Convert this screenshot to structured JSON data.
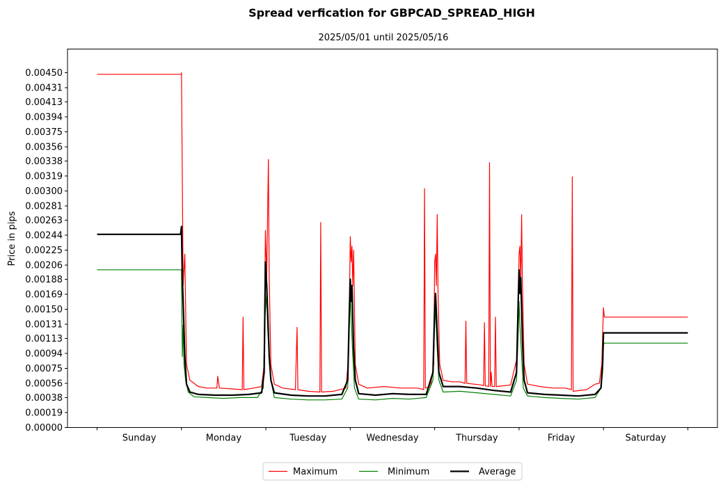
{
  "chart_data": {
    "type": "line",
    "title": "Spread verfication for GBPCAD_SPREAD_HIGH",
    "subtitle": "2025/05/01 until 2025/05/16",
    "xlabel": "",
    "ylabel": "Price in pips",
    "ylim": [
      0,
      0.0048
    ],
    "y_ticks": [
      "0.00000",
      "0.00019",
      "0.00038",
      "0.00056",
      "0.00075",
      "0.00094",
      "0.00113",
      "0.00131",
      "0.00150",
      "0.00169",
      "0.00188",
      "0.00206",
      "0.00225",
      "0.00244",
      "0.00263",
      "0.00281",
      "0.00300",
      "0.00319",
      "0.00338",
      "0.00356",
      "0.00375",
      "0.00394",
      "0.00413",
      "0.00431",
      "0.00450"
    ],
    "categories": [
      "Sunday",
      "Monday",
      "Tuesday",
      "Wednesday",
      "Thursday",
      "Friday",
      "Saturday"
    ],
    "xlim": [
      -0.35,
      7.35
    ],
    "legend_position": "bottom-center",
    "grid": false,
    "series": [
      {
        "name": "Maximum",
        "color": "#ff0000",
        "width": 1.2,
        "points": [
          [
            0,
            0.00448
          ],
          [
            0.999,
            0.00448
          ],
          [
            1.0,
            0.0045
          ],
          [
            1.02,
            0.0018
          ],
          [
            1.04,
            0.0022
          ],
          [
            1.06,
            0.0008
          ],
          [
            1.1,
            0.0006
          ],
          [
            1.2,
            0.00052
          ],
          [
            1.3,
            0.0005
          ],
          [
            1.42,
            0.0005
          ],
          [
            1.43,
            0.00065
          ],
          [
            1.45,
            0.0005
          ],
          [
            1.6,
            0.00049
          ],
          [
            1.72,
            0.00048
          ],
          [
            1.73,
            0.0014
          ],
          [
            1.74,
            0.00048
          ],
          [
            1.85,
            0.0005
          ],
          [
            1.95,
            0.00052
          ],
          [
            1.98,
            0.0008
          ],
          [
            1.995,
            0.0025
          ],
          [
            2.01,
            0.0019
          ],
          [
            2.03,
            0.0034
          ],
          [
            2.04,
            0.0019
          ],
          [
            2.06,
            0.0008
          ],
          [
            2.1,
            0.00055
          ],
          [
            2.2,
            0.0005
          ],
          [
            2.35,
            0.00048
          ],
          [
            2.37,
            0.00127
          ],
          [
            2.38,
            0.00048
          ],
          [
            2.5,
            0.00046
          ],
          [
            2.64,
            0.00045
          ],
          [
            2.65,
            0.0026
          ],
          [
            2.66,
            0.00045
          ],
          [
            2.8,
            0.00046
          ],
          [
            2.95,
            0.0005
          ],
          [
            2.98,
            0.0009
          ],
          [
            3.0,
            0.00242
          ],
          [
            3.01,
            0.0021
          ],
          [
            3.02,
            0.0023
          ],
          [
            3.03,
            0.0018
          ],
          [
            3.04,
            0.00225
          ],
          [
            3.06,
            0.0008
          ],
          [
            3.1,
            0.00055
          ],
          [
            3.2,
            0.0005
          ],
          [
            3.4,
            0.00052
          ],
          [
            3.6,
            0.0005
          ],
          [
            3.8,
            0.0005
          ],
          [
            3.87,
            0.00048
          ],
          [
            3.88,
            0.00303
          ],
          [
            3.89,
            0.0005
          ],
          [
            3.95,
            0.00052
          ],
          [
            3.99,
            0.0008
          ],
          [
            4.0,
            0.0021
          ],
          [
            4.01,
            0.0022
          ],
          [
            4.02,
            0.0018
          ],
          [
            4.03,
            0.0027
          ],
          [
            4.04,
            0.0017
          ],
          [
            4.06,
            0.0008
          ],
          [
            4.1,
            0.0006
          ],
          [
            4.2,
            0.00058
          ],
          [
            4.3,
            0.00058
          ],
          [
            4.36,
            0.00056
          ],
          [
            4.37,
            0.00135
          ],
          [
            4.38,
            0.00056
          ],
          [
            4.55,
            0.00054
          ],
          [
            4.58,
            0.00053
          ],
          [
            4.59,
            0.00133
          ],
          [
            4.6,
            0.00053
          ],
          [
            4.64,
            0.00052
          ],
          [
            4.65,
            0.00336
          ],
          [
            4.66,
            0.00052
          ],
          [
            4.67,
            0.0007
          ],
          [
            4.68,
            0.00052
          ],
          [
            4.71,
            0.00052
          ],
          [
            4.72,
            0.0014
          ],
          [
            4.73,
            0.00052
          ],
          [
            4.9,
            0.00054
          ],
          [
            4.98,
            0.0009
          ],
          [
            5.0,
            0.0022
          ],
          [
            5.01,
            0.0023
          ],
          [
            5.02,
            0.0018
          ],
          [
            5.03,
            0.0027
          ],
          [
            5.04,
            0.0018
          ],
          [
            5.06,
            0.0008
          ],
          [
            5.1,
            0.00055
          ],
          [
            5.25,
            0.00052
          ],
          [
            5.4,
            0.0005
          ],
          [
            5.55,
            0.0005
          ],
          [
            5.62,
            0.00048
          ],
          [
            5.63,
            0.00318
          ],
          [
            5.64,
            0.00046
          ],
          [
            5.8,
            0.00048
          ],
          [
            5.9,
            0.00055
          ],
          [
            5.95,
            0.00056
          ],
          [
            5.98,
            0.0008
          ],
          [
            6.0,
            0.00152
          ],
          [
            6.01,
            0.0014
          ],
          [
            7.0,
            0.0014
          ]
        ]
      },
      {
        "name": "Minimum",
        "color": "#008000",
        "width": 1.2,
        "points": [
          [
            0,
            0.002
          ],
          [
            1.0,
            0.002
          ],
          [
            1.01,
            0.0009
          ],
          [
            1.02,
            0.0013
          ],
          [
            1.03,
            0.0008
          ],
          [
            1.05,
            0.0006
          ],
          [
            1.08,
            0.00045
          ],
          [
            1.15,
            0.00039
          ],
          [
            1.3,
            0.00038
          ],
          [
            1.5,
            0.00037
          ],
          [
            1.7,
            0.00038
          ],
          [
            1.9,
            0.00038
          ],
          [
            1.97,
            0.0005
          ],
          [
            1.99,
            0.0014
          ],
          [
            2.01,
            0.0017
          ],
          [
            2.02,
            0.0013
          ],
          [
            2.04,
            0.0009
          ],
          [
            2.06,
            0.0006
          ],
          [
            2.1,
            0.00038
          ],
          [
            2.3,
            0.00036
          ],
          [
            2.5,
            0.00035
          ],
          [
            2.7,
            0.00035
          ],
          [
            2.9,
            0.00036
          ],
          [
            2.97,
            0.0005
          ],
          [
            2.99,
            0.0013
          ],
          [
            3.0,
            0.0017
          ],
          [
            3.01,
            0.0014
          ],
          [
            3.03,
            0.0009
          ],
          [
            3.05,
            0.0005
          ],
          [
            3.1,
            0.00036
          ],
          [
            3.3,
            0.00035
          ],
          [
            3.5,
            0.00037
          ],
          [
            3.7,
            0.00036
          ],
          [
            3.9,
            0.00038
          ],
          [
            3.98,
            0.0006
          ],
          [
            4.0,
            0.0013
          ],
          [
            4.01,
            0.0015
          ],
          [
            4.03,
            0.001
          ],
          [
            4.05,
            0.0006
          ],
          [
            4.1,
            0.00045
          ],
          [
            4.3,
            0.00046
          ],
          [
            4.5,
            0.00044
          ],
          [
            4.7,
            0.00042
          ],
          [
            4.9,
            0.0004
          ],
          [
            4.97,
            0.0006
          ],
          [
            4.99,
            0.0012
          ],
          [
            5.0,
            0.0016
          ],
          [
            5.01,
            0.0013
          ],
          [
            5.03,
            0.0009
          ],
          [
            5.05,
            0.0005
          ],
          [
            5.1,
            0.0004
          ],
          [
            5.3,
            0.00038
          ],
          [
            5.5,
            0.00037
          ],
          [
            5.7,
            0.00036
          ],
          [
            5.9,
            0.00038
          ],
          [
            5.97,
            0.0005
          ],
          [
            5.99,
            0.0007
          ],
          [
            6.0,
            0.00105
          ],
          [
            6.01,
            0.00107
          ],
          [
            7.0,
            0.00107
          ]
        ]
      },
      {
        "name": "Average",
        "color": "#000000",
        "width": 2.2,
        "points": [
          [
            0,
            0.00245
          ],
          [
            0.99,
            0.00245
          ],
          [
            1.0,
            0.00255
          ],
          [
            1.01,
            0.0019
          ],
          [
            1.02,
            0.0016
          ],
          [
            1.04,
            0.0009
          ],
          [
            1.06,
            0.00055
          ],
          [
            1.1,
            0.00045
          ],
          [
            1.2,
            0.00042
          ],
          [
            1.4,
            0.00041
          ],
          [
            1.6,
            0.00041
          ],
          [
            1.8,
            0.00042
          ],
          [
            1.95,
            0.00044
          ],
          [
            1.98,
            0.0007
          ],
          [
            1.995,
            0.0021
          ],
          [
            2.01,
            0.0018
          ],
          [
            2.02,
            0.0015
          ],
          [
            2.04,
            0.0009
          ],
          [
            2.06,
            0.0006
          ],
          [
            2.1,
            0.00044
          ],
          [
            2.3,
            0.00041
          ],
          [
            2.5,
            0.0004
          ],
          [
            2.7,
            0.0004
          ],
          [
            2.9,
            0.00042
          ],
          [
            2.97,
            0.0006
          ],
          [
            2.99,
            0.0015
          ],
          [
            3.0,
            0.00188
          ],
          [
            3.01,
            0.0016
          ],
          [
            3.02,
            0.0018
          ],
          [
            3.04,
            0.001
          ],
          [
            3.06,
            0.0006
          ],
          [
            3.1,
            0.00043
          ],
          [
            3.3,
            0.00041
          ],
          [
            3.5,
            0.00043
          ],
          [
            3.7,
            0.00042
          ],
          [
            3.9,
            0.00042
          ],
          [
            3.98,
            0.0007
          ],
          [
            4.0,
            0.0015
          ],
          [
            4.01,
            0.0017
          ],
          [
            4.03,
            0.0012
          ],
          [
            4.05,
            0.0007
          ],
          [
            4.1,
            0.00052
          ],
          [
            4.3,
            0.00052
          ],
          [
            4.5,
            0.0005
          ],
          [
            4.7,
            0.00047
          ],
          [
            4.9,
            0.00045
          ],
          [
            4.97,
            0.0007
          ],
          [
            4.99,
            0.0016
          ],
          [
            5.0,
            0.002
          ],
          [
            5.01,
            0.0017
          ],
          [
            5.02,
            0.0019
          ],
          [
            5.04,
            0.0011
          ],
          [
            5.06,
            0.0006
          ],
          [
            5.1,
            0.00044
          ],
          [
            5.3,
            0.00042
          ],
          [
            5.5,
            0.00041
          ],
          [
            5.7,
            0.0004
          ],
          [
            5.9,
            0.00042
          ],
          [
            5.97,
            0.0005
          ],
          [
            5.99,
            0.0008
          ],
          [
            6.0,
            0.0012
          ],
          [
            7.0,
            0.0012
          ]
        ]
      }
    ]
  }
}
